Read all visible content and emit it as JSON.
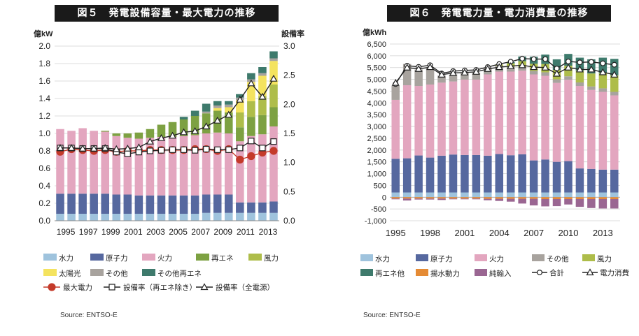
{
  "chart_data": [
    {
      "type": "bar",
      "title": "図５　発電設備容量・最大電力の推移",
      "ylabel": "億kW",
      "y2label": "設備率",
      "ylim": [
        0,
        2.0
      ],
      "y2lim": [
        0,
        3.0
      ],
      "x": [
        1995,
        1996,
        1997,
        1998,
        1999,
        2000,
        2001,
        2002,
        2003,
        2004,
        2005,
        2006,
        2007,
        2008,
        2009,
        2010,
        2011,
        2012,
        2013,
        2014
      ],
      "tick_labels": [
        "1995",
        "1997",
        "1999",
        "2001",
        "2003",
        "2005",
        "2007",
        "2009",
        "2011",
        "2013"
      ],
      "series": [
        {
          "name": "水力",
          "color": "#9fc3dd",
          "values": [
            0.08,
            0.08,
            0.08,
            0.08,
            0.08,
            0.08,
            0.08,
            0.08,
            0.08,
            0.08,
            0.08,
            0.08,
            0.08,
            0.09,
            0.09,
            0.09,
            0.09,
            0.09,
            0.09,
            0.09
          ]
        },
        {
          "name": "原子力",
          "color": "#56689f",
          "values": [
            0.23,
            0.23,
            0.23,
            0.23,
            0.23,
            0.22,
            0.22,
            0.21,
            0.21,
            0.21,
            0.21,
            0.21,
            0.21,
            0.21,
            0.21,
            0.21,
            0.12,
            0.12,
            0.12,
            0.13
          ]
        },
        {
          "name": "火力",
          "color": "#e3a6bf",
          "values": [
            0.74,
            0.72,
            0.75,
            0.72,
            0.71,
            0.67,
            0.65,
            0.65,
            0.66,
            0.67,
            0.67,
            0.68,
            0.69,
            0.7,
            0.71,
            0.7,
            0.7,
            0.76,
            0.78,
            0.86
          ]
        },
        {
          "name": "再エネ",
          "color": "#7da142",
          "values": [
            0,
            0,
            0,
            0,
            0.01,
            0.03,
            0.05,
            0.07,
            0.1,
            0.14,
            0.17,
            0.19,
            0.22,
            0.23,
            0.25,
            0.24,
            0.16,
            0.22,
            0.22,
            0.22
          ]
        },
        {
          "name": "風力",
          "color": "#aebd4a",
          "values": [
            0,
            0,
            0,
            0,
            0,
            0,
            0,
            0,
            0,
            0,
            0,
            0,
            0,
            0,
            0,
            0,
            0.17,
            0.18,
            0.22,
            0.26
          ]
        },
        {
          "name": "太陽光",
          "color": "#f4e35f",
          "values": [
            0,
            0,
            0,
            0,
            0,
            0,
            0,
            0,
            0,
            0,
            0,
            0,
            0,
            0,
            0.03,
            0.06,
            0.14,
            0.22,
            0.23,
            0.27
          ]
        },
        {
          "name": "その他",
          "color": "#a8a39e",
          "values": [
            0,
            0,
            0,
            0,
            0,
            0,
            0,
            0,
            0,
            0,
            0,
            0,
            0,
            0.02,
            0.03,
            0.03,
            0.03,
            0.03,
            0.03,
            0.03
          ]
        },
        {
          "name": "その他再エネ",
          "color": "#3e7a6c",
          "values": [
            0,
            0,
            0,
            0,
            0,
            0,
            0,
            0,
            0,
            0,
            0,
            0.03,
            0.06,
            0.09,
            0.05,
            0.04,
            0.04,
            0.07,
            0.07,
            0.08
          ]
        }
      ],
      "lines": [
        {
          "name": "最大電力",
          "axis": "left",
          "marker": "circle",
          "color": "#c43a2a",
          "values": [
            0.79,
            0.82,
            0.81,
            0.8,
            0.81,
            0.79,
            0.8,
            0.8,
            0.81,
            0.81,
            0.81,
            0.81,
            0.82,
            0.82,
            0.8,
            0.82,
            0.7,
            0.74,
            0.78,
            0.8
          ]
        },
        {
          "name": "設備率（再エネ除き）",
          "axis": "right",
          "marker": "square",
          "color": "#222222",
          "values": [
            1.25,
            1.25,
            1.24,
            1.24,
            1.24,
            1.18,
            1.15,
            1.18,
            1.2,
            1.21,
            1.22,
            1.22,
            1.21,
            1.23,
            1.22,
            1.22,
            1.25,
            1.37,
            1.25,
            1.36
          ]
        },
        {
          "name": "設備率（全電源）",
          "axis": "right",
          "marker": "triangle",
          "color": "#222222",
          "values": [
            1.25,
            1.25,
            1.24,
            1.24,
            1.25,
            1.23,
            1.24,
            1.26,
            1.36,
            1.42,
            1.46,
            1.52,
            1.54,
            1.62,
            1.72,
            1.82,
            2.08,
            2.36,
            2.13,
            2.44
          ]
        }
      ],
      "y_ticks": [
        "0.0",
        "0.2",
        "0.4",
        "0.6",
        "0.8",
        "1.0",
        "1.2",
        "1.4",
        "1.6",
        "1.8",
        "2.0"
      ],
      "y2_ticks": [
        "0.0",
        "0.5",
        "1.0",
        "1.5",
        "2.0",
        "2.5",
        "3.0"
      ],
      "legend_rows": [
        [
          "水力",
          "原子力",
          "火力",
          "再エネ",
          "風力"
        ],
        [
          "太陽光",
          "その他",
          "その他再エネ"
        ],
        [
          "最大電力",
          "設備率（再エネ除き）",
          "設備率（全電源）"
        ]
      ],
      "source": "Source: ENTSO-E"
    },
    {
      "type": "bar",
      "title": "図６　発電電力量・電力消費量の推移",
      "ylabel": "億kWh",
      "ylim": [
        -1000,
        6500
      ],
      "x": [
        1995,
        1996,
        1997,
        1998,
        1999,
        2000,
        2001,
        2002,
        2003,
        2004,
        2005,
        2006,
        2007,
        2008,
        2009,
        2010,
        2011,
        2012,
        2013,
        2014
      ],
      "tick_labels": [
        "1995",
        "1998",
        "2001",
        "2004",
        "2007",
        "2010",
        "2013"
      ],
      "series": [
        {
          "name": "水力",
          "color": "#9fc3dd",
          "values": [
            200,
            200,
            200,
            200,
            200,
            200,
            200,
            200,
            200,
            200,
            200,
            200,
            200,
            200,
            200,
            200,
            200,
            200,
            200,
            200
          ]
        },
        {
          "name": "原子力",
          "color": "#56689f",
          "values": [
            1430,
            1450,
            1570,
            1480,
            1560,
            1610,
            1590,
            1590,
            1560,
            1630,
            1580,
            1620,
            1360,
            1400,
            1300,
            1330,
            1020,
            1000,
            970,
            970
          ]
        },
        {
          "name": "揚水動力",
          "color": "#e58b35",
          "values": [
            -60,
            -60,
            -60,
            -60,
            -60,
            -60,
            -60,
            -60,
            -70,
            -70,
            -70,
            -70,
            -70,
            -80,
            -80,
            -80,
            -80,
            -80,
            -80,
            -80
          ]
        },
        {
          "name": "純輸入",
          "color": "#9a6692",
          "values": [
            -30,
            -80,
            -40,
            -40,
            -60,
            -30,
            -30,
            -30,
            -60,
            -90,
            -120,
            -200,
            -280,
            -310,
            -300,
            -230,
            -330,
            -380,
            -400,
            -400
          ]
        },
        {
          "name": "火力",
          "color": "#e3a6bf",
          "values": [
            2500,
            3100,
            2950,
            3100,
            3100,
            3100,
            3200,
            3200,
            3450,
            3500,
            3550,
            3550,
            3650,
            3550,
            3350,
            3450,
            3500,
            3350,
            3300,
            3150
          ]
        },
        {
          "name": "その他",
          "color": "#a8a39e",
          "values": [
            600,
            900,
            700,
            700,
            300,
            300,
            300,
            300,
            300,
            250,
            200,
            150,
            150,
            150,
            150,
            150,
            150,
            150,
            150,
            150
          ]
        },
        {
          "name": "風力",
          "color": "#aebd4a",
          "values": [
            0,
            0,
            0,
            0,
            0,
            0,
            0,
            0,
            0,
            50,
            150,
            250,
            300,
            350,
            400,
            450,
            500,
            550,
            650,
            700
          ]
        },
        {
          "name": "再エネ他",
          "color": "#3e7a6c",
          "values": [
            0,
            0,
            0,
            0,
            0,
            0,
            0,
            0,
            0,
            0,
            50,
            200,
            300,
            400,
            450,
            500,
            550,
            600,
            650,
            700
          ]
        }
      ],
      "lines": [
        {
          "name": "合計",
          "marker": "circle",
          "color": "#222222",
          "values": [
            4800,
            5580,
            5530,
            5600,
            5250,
            5350,
            5380,
            5400,
            5520,
            5650,
            5750,
            5880,
            5860,
            5860,
            5460,
            5760,
            5720,
            5740,
            5680,
            5620
          ]
        },
        {
          "name": "電力消費",
          "marker": "triangle",
          "color": "#222222",
          "values": [
            4850,
            5500,
            5440,
            5520,
            5200,
            5270,
            5290,
            5320,
            5440,
            5520,
            5560,
            5600,
            5520,
            5500,
            5240,
            5500,
            5420,
            5420,
            5300,
            5200
          ]
        }
      ],
      "y_ticks": [
        "-1,000",
        "-500",
        "0",
        "500",
        "1,000",
        "1,500",
        "2,000",
        "2,500",
        "3,000",
        "3,500",
        "4,000",
        "4,500",
        "5,000",
        "5,500",
        "6,000",
        "6,500"
      ],
      "legend_rows": [
        [
          "水力",
          "原子力",
          "火力",
          "その他",
          "風力"
        ],
        [
          "再エネ他",
          "揚水動力",
          "純輸入",
          "合計",
          "電力消費"
        ]
      ],
      "source": "Source: ENTSO-E"
    }
  ]
}
